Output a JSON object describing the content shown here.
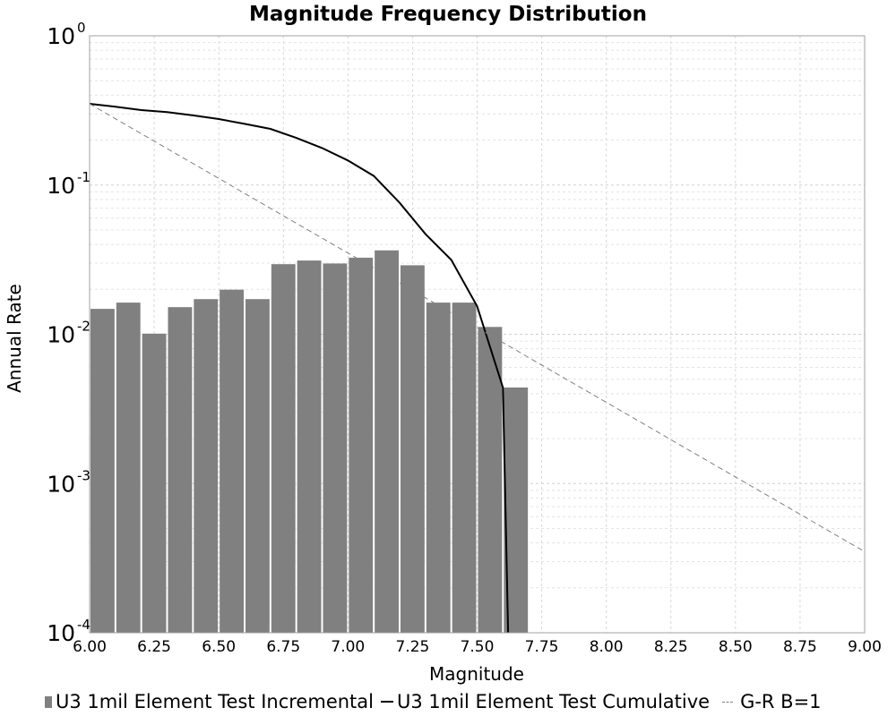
{
  "chart_data": {
    "type": "bar",
    "title": "Magnitude Frequency Distribution",
    "xlabel": "Magnitude",
    "ylabel": "Annual Rate",
    "xlim": [
      6.0,
      9.0
    ],
    "ylim": [
      0.0001,
      1
    ],
    "yscale": "log",
    "grid": true,
    "legend_position": "bottom",
    "x_ticks": [
      "6.00",
      "6.25",
      "6.50",
      "6.75",
      "7.00",
      "7.25",
      "7.50",
      "7.75",
      "8.00",
      "8.25",
      "8.50",
      "8.75",
      "9.00"
    ],
    "y_ticks": [
      {
        "base": "10",
        "exp": "0",
        "value": 1
      },
      {
        "base": "10",
        "exp": "-1",
        "value": 0.1
      },
      {
        "base": "10",
        "exp": "-2",
        "value": 0.01
      },
      {
        "base": "10",
        "exp": "-3",
        "value": 0.001
      },
      {
        "base": "10",
        "exp": "-4",
        "value": 0.0001
      }
    ],
    "series": [
      {
        "name": "U3 1mil Element Test Incremental",
        "type": "bar",
        "color": "#808080",
        "x": [
          6.05,
          6.15,
          6.25,
          6.35,
          6.45,
          6.55,
          6.65,
          6.75,
          6.85,
          6.95,
          7.05,
          7.15,
          7.25,
          7.35,
          7.45,
          7.55,
          7.65
        ],
        "values": [
          0.0148,
          0.0163,
          0.0101,
          0.0152,
          0.0172,
          0.0199,
          0.0172,
          0.0295,
          0.0312,
          0.0298,
          0.0326,
          0.0365,
          0.029,
          0.0163,
          0.0163,
          0.0112,
          0.0044
        ]
      },
      {
        "name": "U3 1mil Element Test Cumulative",
        "type": "line",
        "color": "#000000",
        "x": [
          6.0,
          6.1,
          6.2,
          6.3,
          6.4,
          6.5,
          6.6,
          6.7,
          6.8,
          6.9,
          7.0,
          7.1,
          7.2,
          7.3,
          7.4,
          7.5,
          7.6,
          7.62
        ],
        "values": [
          0.35,
          0.335,
          0.318,
          0.308,
          0.293,
          0.277,
          0.257,
          0.238,
          0.207,
          0.177,
          0.146,
          0.115,
          0.076,
          0.047,
          0.0315,
          0.0154,
          0.0044,
          0.0001
        ]
      },
      {
        "name": "G-R B=1",
        "type": "line",
        "style": "dashed",
        "color": "#808080",
        "x": [
          6.0,
          9.0
        ],
        "values": [
          0.35,
          0.00035
        ]
      }
    ]
  }
}
